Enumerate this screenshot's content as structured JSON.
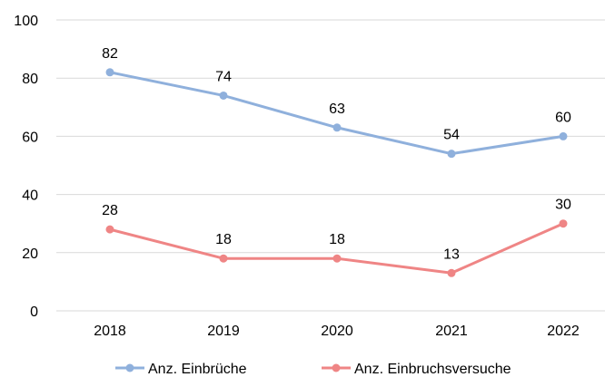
{
  "chart_data": {
    "type": "line",
    "title": "",
    "xlabel": "",
    "ylabel": "",
    "categories": [
      "2018",
      "2019",
      "2020",
      "2021",
      "2022"
    ],
    "ylim": [
      0,
      100
    ],
    "yticks": [
      0,
      20,
      40,
      60,
      80,
      100
    ],
    "grid": true,
    "legend_position": "bottom",
    "series": [
      {
        "name": "Anz. Einbrüche",
        "color": "#8fb0dc",
        "values": [
          82,
          74,
          63,
          54,
          60
        ]
      },
      {
        "name": "Anz. Einbruchsversuche",
        "color": "#ef8585",
        "values": [
          28,
          18,
          18,
          13,
          30
        ]
      }
    ]
  }
}
